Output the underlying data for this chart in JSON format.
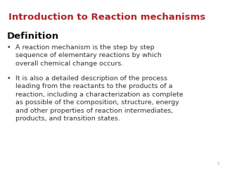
{
  "title": "Introduction to Reaction mechanisms",
  "title_color": "#b22222",
  "title_fontsize": 9.5,
  "title_fontstyle": "normal",
  "title_fontweight": "bold",
  "section_header": "Definition",
  "section_header_fontsize": 9.5,
  "section_header_fontweight": "bold",
  "section_header_color": "#111111",
  "bullet1": "A reaction mechanism is the step by step\nsequence of elementary reactions by which\noverall chemical change occurs.",
  "bullet2": "It is also a detailed description of the process\nleading from the reactants to the products of a\nreaction, including a characterization as complete\nas possible of the composition, structure, energy\nand other properties of reaction intermediates,\nproducts, and transition states.",
  "bullet_fontsize": 6.8,
  "bullet_color": "#333333",
  "background_color": "#ffffff",
  "page_number": "1"
}
